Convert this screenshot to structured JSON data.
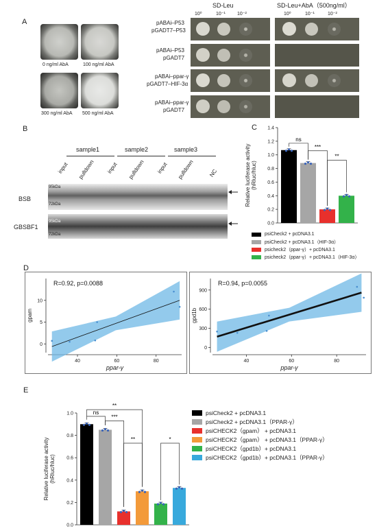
{
  "panels": {
    "A": "A",
    "B": "B",
    "C": "C",
    "D": "D",
    "E": "E"
  },
  "panelA": {
    "aba_labels": [
      "0 ng/ml  AbA",
      "100 ng/ml  AbA",
      "300 ng/ml  AbA",
      "500 ng/ml  AbA"
    ],
    "media": [
      "SD-Leu",
      "SD-Leu+AbA（500ng/ml）"
    ],
    "dilutions": [
      "10⁰",
      "10⁻¹",
      "10⁻²"
    ],
    "rows": [
      {
        "line1": "pABAi–P53",
        "line2": "pGADT7–P53"
      },
      {
        "line1": "pABAi–P53",
        "line2": "pGADT7"
      },
      {
        "line1": "pABAi–ppar-γ",
        "line2": "pGADT7–HIF-3α"
      },
      {
        "line1": "pABAi–ppar-γ",
        "line2": "pGADT7"
      }
    ]
  },
  "panelB": {
    "samples": [
      "sample1",
      "sample2",
      "sample3"
    ],
    "lanes": [
      "input",
      "pulldown",
      "input",
      "pulldown",
      "input",
      "pulldown",
      "NC"
    ],
    "rows": [
      "BSB",
      "GBSBF1"
    ],
    "markers": [
      "95kDa",
      "72kDa"
    ]
  },
  "chart_data": [
    {
      "type": "bar",
      "id": "C",
      "ylabel": "Relative luciferase activity\n(hRluc/hluc)",
      "ylim": [
        0,
        1.4
      ],
      "yticks": [
        "0.0",
        "0.2",
        "0.4",
        "0.6",
        "0.8",
        "1.0",
        "1.2",
        "1.4"
      ],
      "values": [
        1.07,
        0.88,
        0.2,
        0.4
      ],
      "colors": [
        "#000000",
        "#a6a6a6",
        "#e8302c",
        "#33b24a"
      ],
      "significance": [
        {
          "from": 0,
          "to": 1,
          "label": "ns"
        },
        {
          "from": 1,
          "to": 2,
          "label": "***"
        },
        {
          "from": 2,
          "to": 3,
          "label": "**"
        }
      ],
      "legend": [
        "psiCheck2 + pcDNA3.1",
        "psiCheck2 + pcDNA3.1（HIF-3α）",
        "psicheck2（ppar-γ）+ pcDNA3.1",
        "psicheck2（ppar-γ）+ pcDNA3.1（HIF-3α）"
      ]
    },
    {
      "type": "scatter",
      "id": "D-left",
      "xlabel": "ppar-γ",
      "ylabel": "gpam",
      "annotation": "R=0.92, p=0.0088",
      "xlim": [
        25,
        93
      ],
      "ylim": [
        -2,
        15
      ],
      "xticks": [
        40,
        60,
        80
      ],
      "yticks": [
        0,
        5,
        10
      ],
      "points": [
        [
          27,
          0.7
        ],
        [
          36,
          0.5
        ],
        [
          49,
          0.8
        ],
        [
          50,
          5.0
        ],
        [
          89,
          12.0
        ],
        [
          92,
          8.5
        ]
      ],
      "fit": [
        [
          27,
          -0.6
        ],
        [
          92,
          10.0
        ]
      ]
    },
    {
      "type": "scatter",
      "id": "D-right",
      "xlabel": "ppar-γ",
      "ylabel": "gpd1b",
      "annotation": "R=0.94, p=0.0055",
      "xlim": [
        25,
        93
      ],
      "ylim": [
        -80,
        1080
      ],
      "xticks": [
        40,
        60,
        80
      ],
      "yticks": [
        0,
        300,
        600,
        900
      ],
      "points": [
        [
          27,
          250
        ],
        [
          36,
          230
        ],
        [
          49,
          260
        ],
        [
          50,
          500
        ],
        [
          89,
          950
        ],
        [
          92,
          780
        ]
      ],
      "fit": [
        [
          27,
          170
        ],
        [
          91,
          860
        ]
      ]
    },
    {
      "type": "bar",
      "id": "E",
      "ylabel": "Relative luciferase activity\n(hRluc/hluc)",
      "ylim": [
        0,
        1.0
      ],
      "yticks": [
        "0.0",
        "0.2",
        "0.4",
        "0.6",
        "0.8",
        "1.0"
      ],
      "values": [
        0.9,
        0.85,
        0.12,
        0.3,
        0.19,
        0.33
      ],
      "colors": [
        "#000000",
        "#a6a6a6",
        "#e8302c",
        "#f39a3a",
        "#33b24a",
        "#38a9dc"
      ],
      "significance": [
        {
          "label": "ns"
        },
        {
          "label": "***"
        },
        {
          "label": "**"
        },
        {
          "label": "**"
        },
        {
          "label": "*"
        }
      ],
      "legend": [
        "psiCheck2 + pcDNA3.1",
        "psiCheck2 + pcDNA3.1（PPAR-γ）",
        "psiCHECK2（gpam） + pcDNA3.1",
        "psiCHECK2（gpam） + pcDNA3.1（PPAR-γ）",
        "psiCHECK2（gpd1b）+ pcDNA3.1",
        "psiCHECK2（gpd1b）+ pcDNA3.1（PPAR-γ）"
      ]
    }
  ]
}
